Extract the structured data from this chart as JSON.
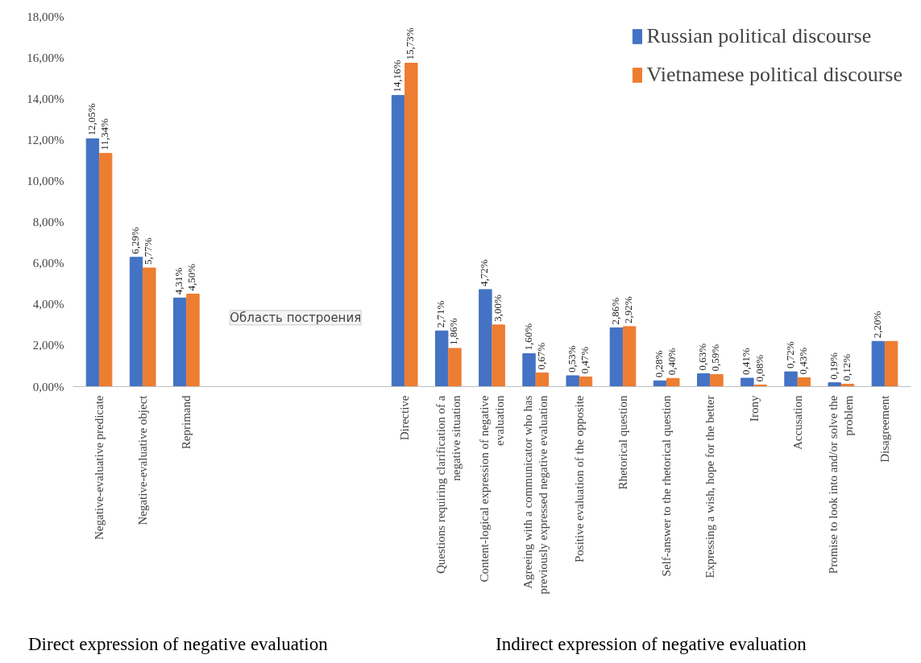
{
  "chart_data": {
    "type": "bar",
    "categories": [
      "Negative-evaluative predicate",
      "Negative-evaluative object",
      "Reprimand",
      null,
      null,
      null,
      null,
      "Directive",
      "Questions requiring clarification of a\nnegative situation",
      "Content-logical expression of negative\nevaluation",
      "Agreeing with a communicator who has\npreviously expressed negative evaluation",
      "Positive evaluation of the opposite",
      "Rhetorical question",
      "Self-answer to the rhetorical question",
      "Expressing a wish, hope for the better",
      "Irony",
      "Accusation",
      "Promise to look into and/or solve the\nproblem",
      "Disagreement"
    ],
    "series": [
      {
        "name": "Russian political discourse",
        "color": "#4472c4",
        "values": [
          12.05,
          6.29,
          4.31,
          null,
          null,
          null,
          null,
          14.16,
          2.71,
          4.72,
          1.6,
          0.53,
          2.86,
          0.28,
          0.63,
          0.41,
          0.72,
          0.19,
          2.2
        ],
        "value_labels": [
          "12,05%",
          "6,29%",
          "4,31%",
          null,
          null,
          null,
          null,
          "14,16%",
          "2,71%",
          "4,72%",
          "1,60%",
          "0,53%",
          "2,86%",
          "0,28%",
          "0,63%",
          "0,41%",
          "0,72%",
          "0,19%",
          "2,20%"
        ]
      },
      {
        "name": "Vietnamese political discourse",
        "color": "#ed7d31",
        "values": [
          11.34,
          5.77,
          4.5,
          null,
          null,
          null,
          null,
          15.73,
          1.86,
          3.0,
          0.67,
          0.47,
          2.92,
          0.4,
          0.59,
          0.08,
          0.43,
          0.12,
          2.2
        ],
        "value_labels": [
          "11,34%",
          "5,77%",
          "4,50%",
          null,
          null,
          null,
          null,
          "15,73%",
          "1,86%",
          "3,00%",
          "0,67%",
          "0,47%",
          "2,92%",
          "0,40%",
          "0,59%",
          "0,08%",
          "0,43%",
          "0,12%",
          null
        ]
      }
    ],
    "ylim": [
      0,
      18
    ],
    "yticks": [
      {
        "value": 0,
        "label": "0,00%"
      },
      {
        "value": 2,
        "label": "2,00%"
      },
      {
        "value": 4,
        "label": "4,00%"
      },
      {
        "value": 6,
        "label": "6,00%"
      },
      {
        "value": 8,
        "label": "8,00%"
      },
      {
        "value": 10,
        "label": "10,00%"
      },
      {
        "value": 12,
        "label": "12,00%"
      },
      {
        "value": 14,
        "label": "14,00%"
      },
      {
        "value": 16,
        "label": "16,00%"
      },
      {
        "value": 18,
        "label": "18,00%"
      }
    ],
    "annotations": [
      "Direct expression of negative evaluation",
      "Indirect expression of negative evaluation",
      "Область построения"
    ],
    "grid": false,
    "legend": "top right"
  }
}
